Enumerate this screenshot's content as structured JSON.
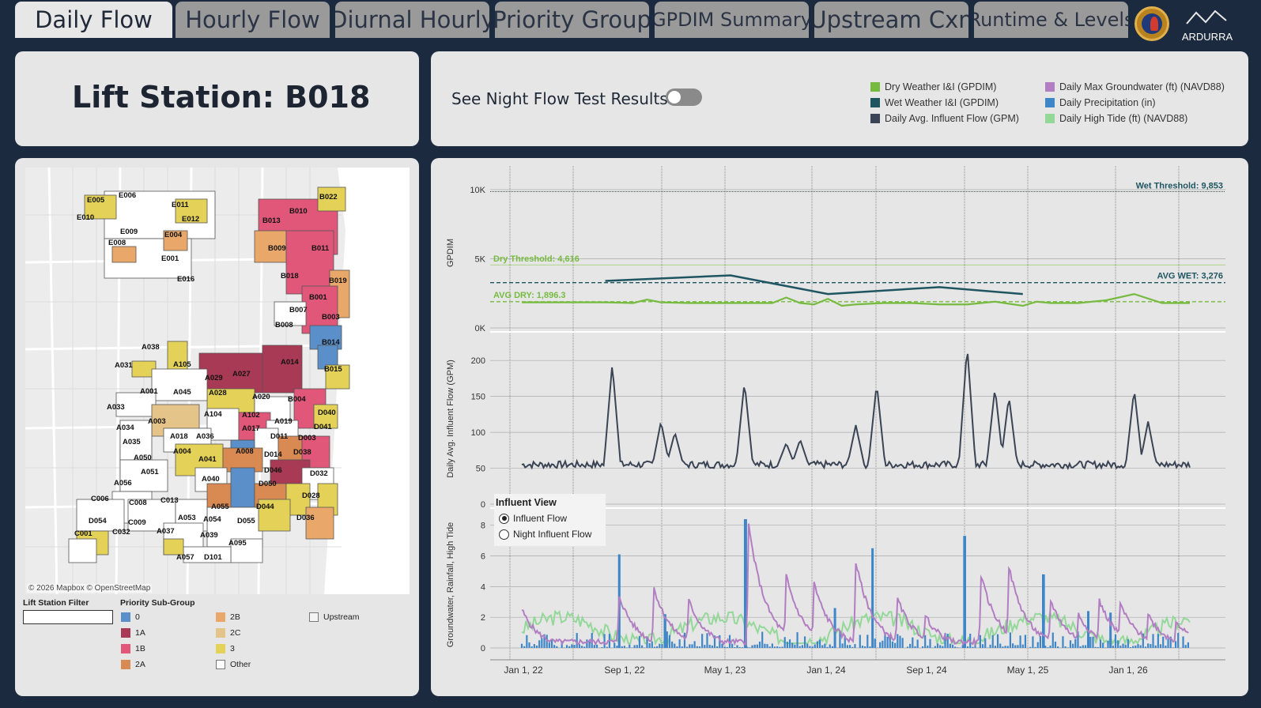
{
  "tabs": [
    {
      "label": "Daily Flow",
      "active": true
    },
    {
      "label": "Hourly Flow",
      "active": false
    },
    {
      "label": "Diurnal Hourly",
      "active": false
    },
    {
      "label": "Priority Group",
      "active": false
    },
    {
      "label": "GPDIM Summary",
      "active": false
    },
    {
      "label": "Upstream Cxn",
      "active": false
    },
    {
      "label": "Runtime & Levels",
      "active": false
    }
  ],
  "brand": {
    "logo_text": "ARDURRA"
  },
  "station": {
    "title": "Lift Station: B018"
  },
  "night_flow": {
    "label": "See Night Flow Test Results",
    "toggle_on": false
  },
  "legend": [
    {
      "label": "Dry Weather I&I (GPDIM)",
      "color": "#76bb40"
    },
    {
      "label": "Wet Weather I&I (GPDIM)",
      "color": "#1f5560"
    },
    {
      "label": "Daily Avg. Influent Flow (GPM)",
      "color": "#3a4454"
    },
    {
      "label": "Daily Max Groundwater (ft) (NAVD88)",
      "color": "#b27ec2"
    },
    {
      "label": "Daily Precipitation (in)",
      "color": "#3f86c8"
    },
    {
      "label": "Daily High Tide (ft) (NAVD88)",
      "color": "#93d899"
    }
  ],
  "map": {
    "attribution": "© 2026 Mapbox  © OpenStreetMap",
    "labels": [
      "E005",
      "E006",
      "E010",
      "E011",
      "E012",
      "E009",
      "E004",
      "E008",
      "E001",
      "E016",
      "B022",
      "B010",
      "B013",
      "B009",
      "B011",
      "B018",
      "B019",
      "B001",
      "B007",
      "B003",
      "B008",
      "B014",
      "B015",
      "A038",
      "A031",
      "A105",
      "A029",
      "A027",
      "A014",
      "A001",
      "A045",
      "A028",
      "A020",
      "B004",
      "A033",
      "A003",
      "A104",
      "A102",
      "A019",
      "D040",
      "A034",
      "A035",
      "A018",
      "A036",
      "A017",
      "D011",
      "D003",
      "D041",
      "A004",
      "A050",
      "A008",
      "D014",
      "D038",
      "A041",
      "A051",
      "A040",
      "D046",
      "D032",
      "A056",
      "D050",
      "C006",
      "C008",
      "C013",
      "A055",
      "D044",
      "D028",
      "D054",
      "C009",
      "A053",
      "A054",
      "D055",
      "D036",
      "C001",
      "C032",
      "A037",
      "A039",
      "A095",
      "A057",
      "D101"
    ]
  },
  "filter": {
    "lift_station_label": "Lift Station Filter",
    "lift_station_value": "",
    "priority_label": "Priority Sub-Group",
    "groups": [
      {
        "label": "0",
        "color": "#5b8fc9"
      },
      {
        "label": "1A",
        "color": "#a93a55"
      },
      {
        "label": "1B",
        "color": "#e0577a"
      },
      {
        "label": "2A",
        "color": "#d98a52"
      },
      {
        "label": "2B",
        "color": "#e9a86a"
      },
      {
        "label": "2C",
        "color": "#e4c488"
      },
      {
        "label": "3",
        "color": "#e3d257"
      },
      {
        "label": "Other",
        "color": "#ffffff"
      },
      {
        "label": "Upstream",
        "color": "#f4f4f4"
      }
    ]
  },
  "influent_view": {
    "title": "Influent View",
    "options": [
      "Influent Flow",
      "Night Influent Flow"
    ],
    "selected": "Influent Flow"
  },
  "chart_data": {
    "type": "line",
    "x_ticks": [
      "Jan 1, 22",
      "Sep 1, 22",
      "May 1, 23",
      "Jan 1, 24",
      "Sep 1, 24",
      "May 1, 25",
      "Jan 1, 26"
    ],
    "gpdim": {
      "ylabel": "GPDIM",
      "y_ticks": [
        "10K",
        "5K",
        "0K"
      ],
      "ylim": [
        0,
        10000
      ],
      "wet_threshold_label": "Wet Threshold: 9,853",
      "dry_threshold_label": "Dry Threshold: 4,616",
      "avg_wet_label": "AVG WET: 3,276",
      "avg_dry_label": "AVG DRY: 1,896.3",
      "wet_threshold": 9853,
      "dry_threshold": 4616,
      "avg_wet": 3276,
      "avg_dry": 1896.3,
      "dry_series": {
        "name": "Dry Weather I&I (GPDIM)",
        "x_month": [
          0,
          2,
          4,
          6,
          8,
          9,
          10,
          12,
          14,
          16,
          18,
          19,
          20,
          21,
          22,
          23,
          24,
          26,
          28,
          30,
          32,
          34,
          36,
          37,
          38,
          40,
          42,
          44,
          46,
          48
        ],
        "values": [
          1850,
          1850,
          1850,
          1850,
          1800,
          2050,
          1850,
          1800,
          1800,
          1800,
          1800,
          2200,
          1800,
          1700,
          2100,
          1600,
          1700,
          1800,
          1800,
          1700,
          1700,
          1900,
          1600,
          1900,
          1800,
          1800,
          2000,
          2450,
          1800,
          1800
        ]
      },
      "wet_series": {
        "name": "Wet Weather I&I (GPDIM)",
        "x_month": [
          6,
          15,
          22,
          30,
          36
        ],
        "values": [
          3400,
          3800,
          2450,
          2950,
          2450
        ]
      }
    },
    "flow": {
      "ylabel": "Daily Avg. Influent Flow (GPM)",
      "y_ticks": [
        "200",
        "150",
        "100",
        "50",
        "0"
      ],
      "ylim": [
        0,
        220
      ],
      "baseline": 55,
      "spikes": [
        {
          "x_month": 6.5,
          "peak": 195
        },
        {
          "x_month": 10,
          "peak": 115
        },
        {
          "x_month": 11,
          "peak": 100
        },
        {
          "x_month": 16,
          "peak": 170
        },
        {
          "x_month": 19,
          "peak": 85
        },
        {
          "x_month": 20,
          "peak": 90
        },
        {
          "x_month": 24,
          "peak": 110
        },
        {
          "x_month": 25.5,
          "peak": 168
        },
        {
          "x_month": 32,
          "peak": 220
        },
        {
          "x_month": 34,
          "peak": 162
        },
        {
          "x_month": 35,
          "peak": 150
        },
        {
          "x_month": 44,
          "peak": 160
        },
        {
          "x_month": 45,
          "peak": 115
        }
      ]
    },
    "env": {
      "ylabel": "Groundwater, Rainfall, High Tide",
      "y_ticks": [
        "8",
        "6",
        "4",
        "2",
        "0"
      ],
      "ylim": [
        0,
        8.5
      ],
      "groundwater_peaks": [
        {
          "x_month": 0,
          "peak": 2.5
        },
        {
          "x_month": 7,
          "peak": 3.4
        },
        {
          "x_month": 9.5,
          "peak": 3.9
        },
        {
          "x_month": 12,
          "peak": 3.1
        },
        {
          "x_month": 16.3,
          "peak": 8.0
        },
        {
          "x_month": 19,
          "peak": 4.7
        },
        {
          "x_month": 21,
          "peak": 4.2
        },
        {
          "x_month": 24,
          "peak": 5.6
        },
        {
          "x_month": 27,
          "peak": 3.2
        },
        {
          "x_month": 29,
          "peak": 2.1
        },
        {
          "x_month": 33,
          "peak": 4.7
        },
        {
          "x_month": 35,
          "peak": 5.3
        },
        {
          "x_month": 38,
          "peak": 3.1
        },
        {
          "x_month": 40,
          "peak": 2.2
        },
        {
          "x_month": 41.5,
          "peak": 3.1
        },
        {
          "x_month": 43,
          "peak": 2.9
        },
        {
          "x_month": 45,
          "peak": 2.2
        },
        {
          "x_month": 47,
          "peak": 1.8
        }
      ],
      "rain_spikes": [
        {
          "x_month": 7,
          "value": 6.1
        },
        {
          "x_month": 16.1,
          "value": 8.4
        },
        {
          "x_month": 25.2,
          "value": 6.5
        },
        {
          "x_month": 31.8,
          "value": 7.3
        },
        {
          "x_month": 37.5,
          "value": 4.8
        },
        {
          "x_month": 10.3,
          "value": 2.2
        },
        {
          "x_month": 22.5,
          "value": 2.6
        },
        {
          "x_month": 40.7,
          "value": 2.4
        },
        {
          "x_month": 42.3,
          "value": 2.3
        }
      ]
    }
  }
}
